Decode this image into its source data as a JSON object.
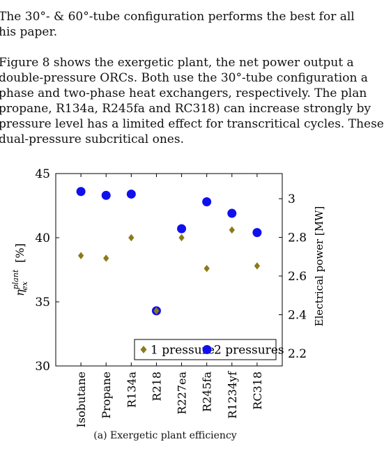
{
  "text": {
    "para1_lines": [
      "The 30°- & 60°-tube configuration performs the best for all",
      "his paper."
    ],
    "para2_lines": [
      "Figure 8 shows the exergetic plant, the net power output a",
      "double-pressure ORCs. Both use the 30°-tube configuration a",
      "phase and two-phase heat exchangers, respectively. The plan",
      "propane, R134a, R245fa and RC318) can increase strongly by",
      "pressure level has a limited effect for transcritical cycles. These",
      "dual-pressure subcritical ones."
    ],
    "caption": "(a) Exergetic plant efficiency"
  },
  "chart_data": {
    "type": "scatter",
    "categories": [
      "Isobutane",
      "Propane",
      "R134a",
      "R218",
      "R227ea",
      "R245fa",
      "R1234yf",
      "RC318"
    ],
    "ylabel_left": "η_ex^plant [%]",
    "ylabel_left_parts": {
      "base": "η",
      "sub": "ex",
      "sup": "plant",
      "unit": "[%]"
    },
    "ylabel_right": "Electrical power [MW]",
    "ylim_left": [
      30,
      45
    ],
    "yticks_left": [
      30,
      35,
      40,
      45
    ],
    "ylim_right": [
      2.135,
      3.13
    ],
    "yticks_right": [
      2.2,
      2.4,
      2.6,
      2.8,
      3.0
    ],
    "ytick_labels_right": [
      "2.2",
      "2.4",
      "2.6",
      "2.8",
      "3"
    ],
    "series": [
      {
        "name": "1 pressure",
        "marker": "diamond",
        "color": "#8c7a18",
        "values": [
          38.6,
          38.4,
          40.0,
          34.3,
          40.0,
          37.6,
          40.6,
          37.8
        ]
      },
      {
        "name": "2 pressures",
        "marker": "circle",
        "color": "#1010ee",
        "values": [
          43.6,
          43.3,
          43.4,
          34.3,
          40.7,
          42.8,
          41.9,
          40.4
        ]
      }
    ],
    "legend": {
      "position": "bottom-right"
    }
  }
}
